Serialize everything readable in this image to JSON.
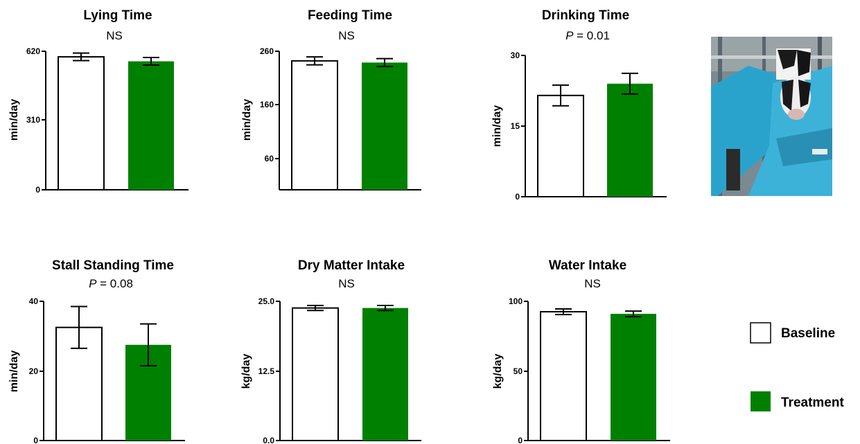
{
  "legend": {
    "baseline_label": "Baseline",
    "treatment_label": "Treatment"
  },
  "colors": {
    "baseline_fill": "#ffffff",
    "treatment_fill": "#008000",
    "outline": "#000000"
  },
  "photo": {
    "icon": "cow-at-feed-bin-photo"
  },
  "chart_data": [
    {
      "type": "bar",
      "title": "Lying Time",
      "subtitle": "NS",
      "ylabel": "min/day",
      "ylim": [
        0,
        620
      ],
      "yticks": [
        "0",
        "310",
        "620"
      ],
      "categories": [
        "Baseline",
        "Treatment"
      ],
      "values": [
        595,
        575
      ],
      "errors": [
        17,
        17
      ]
    },
    {
      "type": "bar",
      "title": "Feeding Time",
      "subtitle": "NS",
      "ylabel": "min/day",
      "ylim": [
        15,
        260
      ],
      "yticks": [
        "60",
        "160",
        "260"
      ],
      "categories": [
        "Baseline",
        "Treatment"
      ],
      "values": [
        243,
        240
      ],
      "errors": [
        7,
        7
      ]
    },
    {
      "type": "bar",
      "title": "Drinking Time",
      "subtitle_prefix": "P",
      "subtitle": " = 0.01",
      "ylabel": "min/day",
      "ylim": [
        0,
        30
      ],
      "yticks": [
        "0",
        "15",
        "30"
      ],
      "categories": [
        "Baseline",
        "Treatment"
      ],
      "values": [
        21.5,
        24.0
      ],
      "errors": [
        2.2,
        2.2
      ]
    },
    {
      "type": "bar",
      "title": "Stall Standing Time",
      "subtitle_prefix": "P",
      "subtitle": " = 0.08",
      "ylabel": "min/day",
      "ylim": [
        0,
        40
      ],
      "yticks": [
        "0",
        "20",
        "40"
      ],
      "categories": [
        "Baseline",
        "Treatment"
      ],
      "values": [
        32.5,
        27.5
      ],
      "errors": [
        6.0,
        6.0
      ]
    },
    {
      "type": "bar",
      "title": "Dry Matter Intake",
      "subtitle": "NS",
      "ylabel": "kg/day",
      "ylim": [
        0,
        25
      ],
      "yticks": [
        "0.0",
        "12.5",
        "25.0"
      ],
      "categories": [
        "Baseline",
        "Treatment"
      ],
      "values": [
        23.8,
        23.8
      ],
      "errors": [
        0.45,
        0.45
      ]
    },
    {
      "type": "bar",
      "title": "Water Intake",
      "subtitle": "NS",
      "ylabel": "kg/day",
      "ylim": [
        0,
        100
      ],
      "yticks": [
        "0",
        "50",
        "100"
      ],
      "categories": [
        "Baseline",
        "Treatment"
      ],
      "values": [
        92.5,
        91.0
      ],
      "errors": [
        2.0,
        2.0
      ]
    }
  ]
}
